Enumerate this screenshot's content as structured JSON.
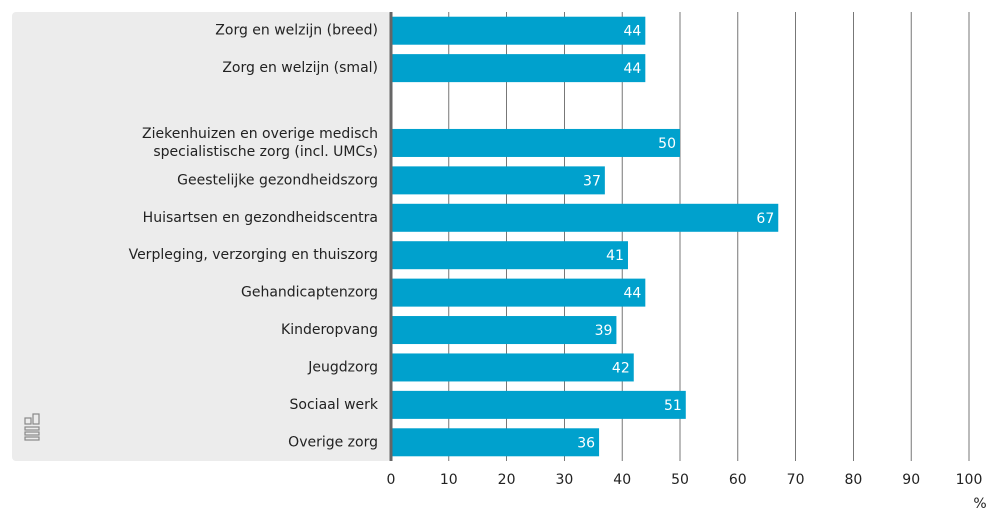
{
  "chart_data": {
    "type": "hbar",
    "categories": [
      "Zorg en welzijn (breed)",
      "Zorg en welzijn (smal)",
      null,
      "Ziekenhuizen en overige medisch\nspecialistische zorg (incl. UMCs)",
      "Geestelijke gezondheidszorg",
      "Huisartsen en gezondheidscentra",
      "Verpleging, verzorging en thuiszorg",
      "Gehandicaptenzorg",
      "Kinderopvang",
      "Jeugdzorg",
      "Sociaal werk",
      "Overige zorg"
    ],
    "values": [
      44,
      44,
      null,
      50,
      37,
      67,
      41,
      44,
      39,
      42,
      51,
      36
    ],
    "color": "#00a1cd",
    "xlim": [
      0,
      100
    ],
    "xticks": [
      0,
      10,
      20,
      30,
      40,
      50,
      60,
      70,
      80,
      90,
      100
    ],
    "xlabel": "%",
    "grid": true
  }
}
